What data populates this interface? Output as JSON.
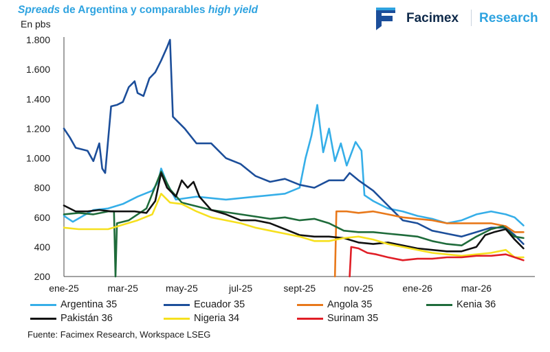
{
  "title_parts": {
    "a": "Spreads",
    "b": " de Argentina y comparables ",
    "c": "high yield"
  },
  "subtitle": "En pbs",
  "logo": {
    "brand": "Facimex",
    "section": "Research"
  },
  "source": "Fuente: Facimex Research, Workspace LSEG",
  "chart_data": {
    "type": "line",
    "title": "Spreads de Argentina y comparables high yield",
    "ylabel": "En pbs",
    "ylim": [
      200,
      1800
    ],
    "yticks": [
      200,
      400,
      600,
      800,
      1000,
      1200,
      1400,
      1600,
      1800
    ],
    "ytick_labels": [
      "200",
      "400",
      "600",
      "800",
      "1.000",
      "1.200",
      "1.400",
      "1.600",
      "1.800"
    ],
    "xlim": [
      0,
      15.8
    ],
    "xticks": [
      0,
      2,
      4,
      6,
      8,
      10,
      12,
      14
    ],
    "xtick_labels": [
      "ene-25",
      "mar-25",
      "may-25",
      "jul-25",
      "sept-25",
      "nov-25",
      "ene-26",
      "mar-26"
    ],
    "grid": false,
    "legend_position": "bottom",
    "series": [
      {
        "name": "Argentina 35",
        "color": "#35aee8",
        "points": [
          [
            0,
            610
          ],
          [
            0.3,
            570
          ],
          [
            1,
            650
          ],
          [
            1.5,
            660
          ],
          [
            2,
            690
          ],
          [
            2.5,
            740
          ],
          [
            3,
            780
          ],
          [
            3.2,
            840
          ],
          [
            3.3,
            930
          ],
          [
            3.5,
            830
          ],
          [
            3.8,
            720
          ],
          [
            4.5,
            740
          ],
          [
            5.5,
            720
          ],
          [
            6.5,
            740
          ],
          [
            7.5,
            760
          ],
          [
            8,
            800
          ],
          [
            8.2,
            1000
          ],
          [
            8.4,
            1150
          ],
          [
            8.6,
            1360
          ],
          [
            8.8,
            1040
          ],
          [
            9,
            1200
          ],
          [
            9.2,
            980
          ],
          [
            9.4,
            1100
          ],
          [
            9.6,
            950
          ],
          [
            9.9,
            1110
          ],
          [
            10.1,
            1050
          ],
          [
            10.2,
            750
          ],
          [
            10.5,
            710
          ],
          [
            11,
            660
          ],
          [
            11.5,
            640
          ],
          [
            12,
            610
          ],
          [
            12.5,
            590
          ],
          [
            13,
            560
          ],
          [
            13.5,
            580
          ],
          [
            14,
            620
          ],
          [
            14.5,
            640
          ],
          [
            15,
            620
          ],
          [
            15.3,
            600
          ],
          [
            15.6,
            545
          ]
        ]
      },
      {
        "name": "Ecuador 35",
        "color": "#1c4e9a",
        "points": [
          [
            0,
            1200
          ],
          [
            0.2,
            1140
          ],
          [
            0.4,
            1070
          ],
          [
            0.8,
            1050
          ],
          [
            1,
            980
          ],
          [
            1.2,
            1100
          ],
          [
            1.3,
            930
          ],
          [
            1.4,
            900
          ],
          [
            1.6,
            1350
          ],
          [
            1.8,
            1360
          ],
          [
            2,
            1380
          ],
          [
            2.2,
            1480
          ],
          [
            2.4,
            1520
          ],
          [
            2.5,
            1440
          ],
          [
            2.7,
            1420
          ],
          [
            2.9,
            1540
          ],
          [
            3.1,
            1580
          ],
          [
            3.3,
            1660
          ],
          [
            3.5,
            1750
          ],
          [
            3.6,
            1800
          ],
          [
            3.7,
            1280
          ],
          [
            3.8,
            1260
          ],
          [
            4.1,
            1200
          ],
          [
            4.5,
            1100
          ],
          [
            5,
            1100
          ],
          [
            5.5,
            1000
          ],
          [
            6,
            960
          ],
          [
            6.5,
            880
          ],
          [
            7,
            840
          ],
          [
            7.5,
            860
          ],
          [
            8,
            820
          ],
          [
            8.5,
            800
          ],
          [
            9,
            850
          ],
          [
            9.5,
            850
          ],
          [
            9.7,
            900
          ],
          [
            10,
            850
          ],
          [
            10.5,
            780
          ],
          [
            11,
            680
          ],
          [
            11.5,
            580
          ],
          [
            12,
            560
          ],
          [
            12.5,
            510
          ],
          [
            13,
            490
          ],
          [
            13.5,
            470
          ],
          [
            14,
            500
          ],
          [
            14.5,
            530
          ],
          [
            15,
            530
          ],
          [
            15.3,
            480
          ],
          [
            15.6,
            420
          ]
        ]
      },
      {
        "name": "Angola 35",
        "color": "#e8781a",
        "points": [
          [
            9.2,
            200
          ],
          [
            9.25,
            640
          ],
          [
            9.6,
            640
          ],
          [
            10,
            630
          ],
          [
            10.5,
            640
          ],
          [
            11,
            620
          ],
          [
            11.5,
            600
          ],
          [
            12,
            590
          ],
          [
            12.5,
            580
          ],
          [
            13,
            560
          ],
          [
            13.5,
            560
          ],
          [
            14,
            560
          ],
          [
            14.5,
            560
          ],
          [
            15,
            540
          ],
          [
            15.3,
            500
          ],
          [
            15.6,
            500
          ]
        ]
      },
      {
        "name": "Kenia 36",
        "color": "#1e6b3a",
        "points": [
          [
            0,
            620
          ],
          [
            0.5,
            630
          ],
          [
            1,
            620
          ],
          [
            1.5,
            640
          ],
          [
            1.7,
            640
          ],
          [
            1.75,
            200
          ],
          [
            1.8,
            560
          ],
          [
            2.2,
            580
          ],
          [
            2.8,
            660
          ],
          [
            3.3,
            910
          ],
          [
            3.6,
            790
          ],
          [
            4,
            700
          ],
          [
            5,
            650
          ],
          [
            6,
            620
          ],
          [
            7,
            590
          ],
          [
            7.5,
            600
          ],
          [
            8,
            580
          ],
          [
            8.5,
            590
          ],
          [
            9,
            560
          ],
          [
            9.5,
            510
          ],
          [
            10,
            500
          ],
          [
            10.5,
            500
          ],
          [
            11,
            490
          ],
          [
            11.5,
            480
          ],
          [
            12,
            470
          ],
          [
            12.5,
            440
          ],
          [
            13,
            420
          ],
          [
            13.5,
            410
          ],
          [
            14,
            470
          ],
          [
            14.5,
            520
          ],
          [
            14.9,
            540
          ],
          [
            15.3,
            470
          ],
          [
            15.6,
            460
          ]
        ]
      },
      {
        "name": "Pakistán 36",
        "color": "#111111",
        "points": [
          [
            0,
            680
          ],
          [
            0.4,
            640
          ],
          [
            0.8,
            640
          ],
          [
            1.2,
            650
          ],
          [
            1.6,
            640
          ],
          [
            2,
            640
          ],
          [
            2.4,
            640
          ],
          [
            2.8,
            630
          ],
          [
            3.1,
            710
          ],
          [
            3.3,
            900
          ],
          [
            3.5,
            800
          ],
          [
            3.8,
            740
          ],
          [
            4,
            850
          ],
          [
            4.2,
            800
          ],
          [
            4.4,
            840
          ],
          [
            4.6,
            740
          ],
          [
            5,
            650
          ],
          [
            5.5,
            620
          ],
          [
            6,
            580
          ],
          [
            6.5,
            580
          ],
          [
            7,
            560
          ],
          [
            7.5,
            520
          ],
          [
            8,
            480
          ],
          [
            8.5,
            470
          ],
          [
            9,
            470
          ],
          [
            9.5,
            460
          ],
          [
            10,
            430
          ],
          [
            10.5,
            420
          ],
          [
            11,
            430
          ],
          [
            11.5,
            410
          ],
          [
            12,
            390
          ],
          [
            12.5,
            380
          ],
          [
            13,
            370
          ],
          [
            13.5,
            370
          ],
          [
            14,
            400
          ],
          [
            14.3,
            480
          ],
          [
            14.6,
            500
          ],
          [
            15,
            520
          ],
          [
            15.3,
            450
          ],
          [
            15.6,
            390
          ]
        ]
      },
      {
        "name": "Nigeria 34",
        "color": "#f6e01e",
        "points": [
          [
            0,
            530
          ],
          [
            0.5,
            520
          ],
          [
            1,
            520
          ],
          [
            1.5,
            520
          ],
          [
            2,
            550
          ],
          [
            2.5,
            580
          ],
          [
            3,
            620
          ],
          [
            3.3,
            760
          ],
          [
            3.6,
            700
          ],
          [
            4,
            690
          ],
          [
            4.5,
            640
          ],
          [
            5,
            600
          ],
          [
            5.5,
            580
          ],
          [
            6,
            560
          ],
          [
            6.5,
            530
          ],
          [
            7,
            510
          ],
          [
            7.5,
            490
          ],
          [
            8,
            470
          ],
          [
            8.5,
            440
          ],
          [
            9,
            440
          ],
          [
            9.5,
            460
          ],
          [
            10,
            470
          ],
          [
            10.5,
            450
          ],
          [
            11,
            420
          ],
          [
            11.5,
            400
          ],
          [
            12,
            380
          ],
          [
            12.5,
            360
          ],
          [
            13,
            350
          ],
          [
            13.5,
            340
          ],
          [
            14,
            350
          ],
          [
            14.5,
            360
          ],
          [
            15,
            380
          ],
          [
            15.3,
            330
          ],
          [
            15.6,
            330
          ]
        ]
      },
      {
        "name": "Surinam 35",
        "color": "#e01e26",
        "points": [
          [
            9.7,
            200
          ],
          [
            9.75,
            400
          ],
          [
            10,
            390
          ],
          [
            10.3,
            360
          ],
          [
            10.6,
            350
          ],
          [
            11,
            330
          ],
          [
            11.5,
            310
          ],
          [
            12,
            320
          ],
          [
            12.5,
            320
          ],
          [
            13,
            330
          ],
          [
            13.5,
            330
          ],
          [
            14,
            340
          ],
          [
            14.5,
            340
          ],
          [
            15,
            350
          ],
          [
            15.3,
            330
          ],
          [
            15.6,
            310
          ]
        ]
      }
    ]
  }
}
